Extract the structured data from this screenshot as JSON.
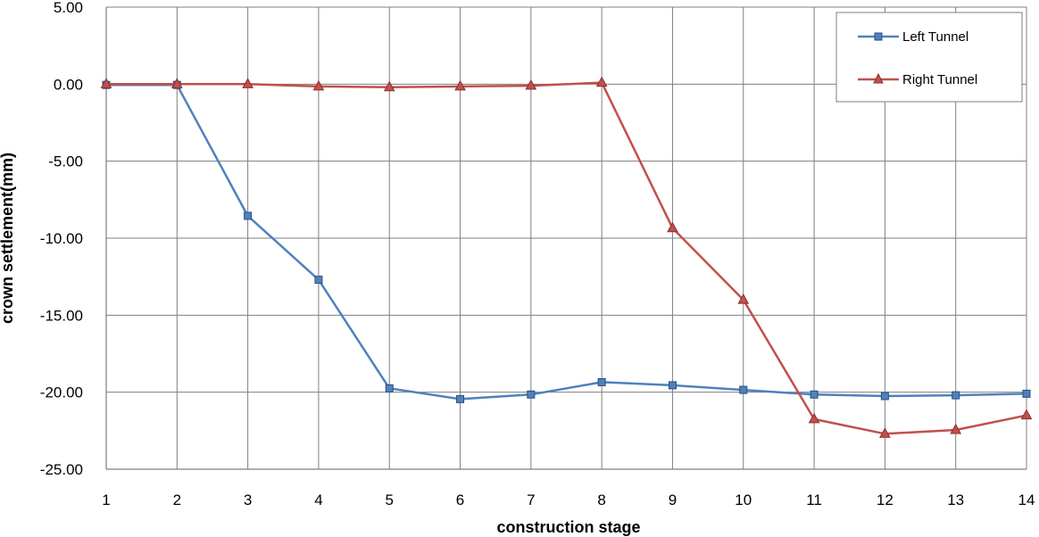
{
  "chart_data": {
    "type": "line",
    "title": "",
    "xlabel": "construction stage",
    "ylabel": "crown settlement(mm)",
    "x": [
      1,
      2,
      3,
      4,
      5,
      6,
      7,
      8,
      9,
      10,
      11,
      12,
      13,
      14
    ],
    "xlim": [
      1,
      14
    ],
    "ylim": [
      -25,
      5
    ],
    "yticks": [
      5,
      0,
      -5,
      -10,
      -15,
      -20,
      -25
    ],
    "ytick_labels": [
      "5.00",
      "0.00",
      "-5.00",
      "-10.00",
      "-15.00",
      "-20.00",
      "-25.00"
    ],
    "xtick_labels": [
      "1",
      "2",
      "3",
      "4",
      "5",
      "6",
      "7",
      "8",
      "9",
      "10",
      "11",
      "12",
      "13",
      "14"
    ],
    "grid": true,
    "legend_position": "top-right",
    "series": [
      {
        "name": "Left Tunnel",
        "color": "#4f81bd",
        "marker": "square",
        "values": [
          -0.05,
          -0.05,
          -8.55,
          -12.7,
          -19.75,
          -20.45,
          -20.15,
          -19.35,
          -19.55,
          -19.85,
          -20.15,
          -20.25,
          -20.2,
          -20.1
        ]
      },
      {
        "name": "Right Tunnel",
        "color": "#c0504d",
        "marker": "triangle",
        "values": [
          0.0,
          0.0,
          0.0,
          -0.15,
          -0.2,
          -0.15,
          -0.1,
          0.1,
          -9.35,
          -14.0,
          -21.75,
          -22.7,
          -22.45,
          -21.5
        ]
      }
    ]
  }
}
